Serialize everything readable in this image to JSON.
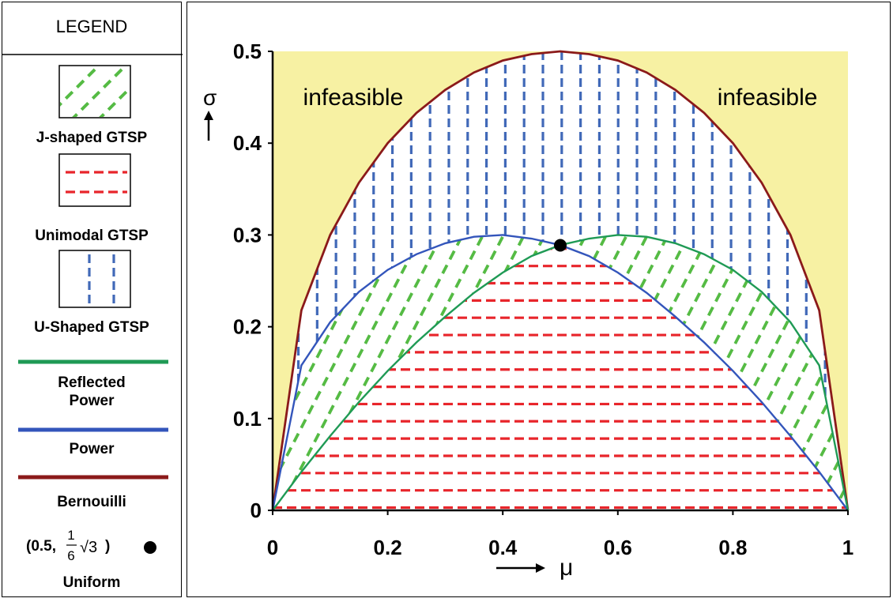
{
  "legend": {
    "title": "LEGEND",
    "j_label": "J-shaped GTSP",
    "uni_label": "Unimodal GTSP",
    "u_label": "U-Shaped GTSP",
    "refl_label_1": "Reflected",
    "refl_label_2": "Power",
    "power_label": "Power",
    "bern_label": "Bernouilli",
    "pt_open": "(0.5,",
    "pt_num": "1",
    "pt_den": "6",
    "pt_sqrt": "√3",
    "pt_close": ")",
    "uniform_label": "Uniform"
  },
  "colors": {
    "infeasible_fill": "#f7f1a3",
    "j_shaped": "#55bb44",
    "unimodal": "#e8252b",
    "u_shaped": "#4169b8",
    "reflected_power": "#1f9a55",
    "power": "#3355bb",
    "bernoulli": "#8b1a1a",
    "point": "#000000"
  },
  "chart_data": {
    "type": "area",
    "xlabel": "μ",
    "ylabel": "σ",
    "xlim": [
      0,
      1
    ],
    "ylim": [
      0,
      0.5
    ],
    "x_ticks": [
      "0",
      "0.2",
      "0.4",
      "0.6",
      "0.8",
      "1"
    ],
    "y_ticks": [
      "0",
      "0.1",
      "0.2",
      "0.3",
      "0.4",
      "0.5"
    ],
    "annotations": [
      {
        "text": "infeasible",
        "x": 0.14,
        "y": 0.45
      },
      {
        "text": "infeasible",
        "x": 0.86,
        "y": 0.45
      }
    ],
    "grid": false,
    "series": [
      {
        "name": "Bernouilli",
        "x": [
          0,
          0.05,
          0.1,
          0.15,
          0.2,
          0.25,
          0.3,
          0.35,
          0.4,
          0.45,
          0.5,
          0.55,
          0.6,
          0.65,
          0.7,
          0.75,
          0.8,
          0.85,
          0.9,
          0.95,
          1
        ],
        "y": [
          0,
          0.218,
          0.3,
          0.357,
          0.4,
          0.433,
          0.458,
          0.477,
          0.49,
          0.497,
          0.5,
          0.497,
          0.49,
          0.477,
          0.458,
          0.433,
          0.4,
          0.357,
          0.3,
          0.218,
          0
        ]
      },
      {
        "name": "Power",
        "x": [
          0,
          0.05,
          0.1,
          0.15,
          0.2,
          0.25,
          0.3,
          0.35,
          0.4,
          0.45,
          0.5,
          0.55,
          0.6,
          0.65,
          0.7,
          0.75,
          0.8,
          0.85,
          0.9,
          0.95,
          1
        ],
        "y": [
          0,
          0.158,
          0.205,
          0.238,
          0.262,
          0.279,
          0.291,
          0.298,
          0.3,
          0.296,
          0.289,
          0.277,
          0.259,
          0.237,
          0.211,
          0.183,
          0.152,
          0.118,
          0.081,
          0.042,
          0
        ]
      },
      {
        "name": "Reflected Power",
        "x": [
          0,
          0.05,
          0.1,
          0.15,
          0.2,
          0.25,
          0.3,
          0.35,
          0.4,
          0.45,
          0.5,
          0.55,
          0.6,
          0.65,
          0.7,
          0.75,
          0.8,
          0.85,
          0.9,
          0.95,
          1
        ],
        "y": [
          0,
          0.042,
          0.081,
          0.118,
          0.152,
          0.183,
          0.211,
          0.237,
          0.259,
          0.277,
          0.289,
          0.296,
          0.3,
          0.298,
          0.291,
          0.279,
          0.262,
          0.238,
          0.205,
          0.158,
          0
        ]
      },
      {
        "name": "Uniform",
        "type": "scatter",
        "x": [
          0.5
        ],
        "y": [
          0.2887
        ]
      }
    ]
  }
}
